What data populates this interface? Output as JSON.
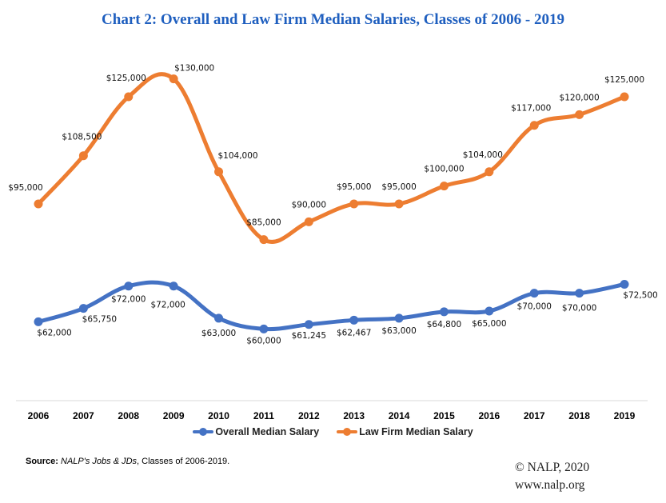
{
  "chart_data": {
    "type": "line",
    "title": "Chart 2: Overall and Law Firm Median Salaries, Classes of 2006 - 2019",
    "xlabel": "",
    "ylabel": "",
    "categories": [
      "2006",
      "2007",
      "2008",
      "2009",
      "2010",
      "2011",
      "2012",
      "2013",
      "2014",
      "2015",
      "2016",
      "2017",
      "2018",
      "2019"
    ],
    "ylim": [
      0,
      0
    ],
    "grid": false,
    "legend_position": "bottom",
    "series": [
      {
        "name": "Overall Median Salary",
        "color": "#4472c4",
        "values": [
          62000,
          65750,
          72000,
          72000,
          63000,
          60000,
          61245,
          62467,
          63000,
          64800,
          65000,
          70000,
          70000,
          72500
        ],
        "labels": [
          "$62,000",
          "$65,750",
          "$72,000",
          "$72,000",
          "$63,000",
          "$60,000",
          "$61,245",
          "$62,467",
          "$63,000",
          "$64,800",
          "$65,000",
          "$70,000",
          "$70,000",
          "$72,500"
        ],
        "label_position": "below"
      },
      {
        "name": "Law Firm Median Salary",
        "color": "#ed7d31",
        "values": [
          95000,
          108500,
          125000,
          130000,
          104000,
          85000,
          90000,
          95000,
          95000,
          100000,
          104000,
          117000,
          120000,
          125000
        ],
        "labels": [
          "$95,000",
          "$108,500",
          "$125,000",
          "$130,000",
          "$104,000",
          "$85,000",
          "$90,000",
          "$95,000",
          "$95,000",
          "$100,000",
          "$104,000",
          "$117,000",
          "$120,000",
          "$125,000"
        ],
        "label_position": "above"
      }
    ],
    "smooth": true
  },
  "legend": {
    "overall": "Overall Median Salary",
    "lawfirm": "Law Firm Median Salary"
  },
  "footer": {
    "source_prefix": "Source: ",
    "source_italic": "NALP's Jobs & JDs",
    "source_suffix": ", Classes of 2006-2019.",
    "copyright": "© NALP, 2020",
    "website": "www.nalp.org"
  }
}
